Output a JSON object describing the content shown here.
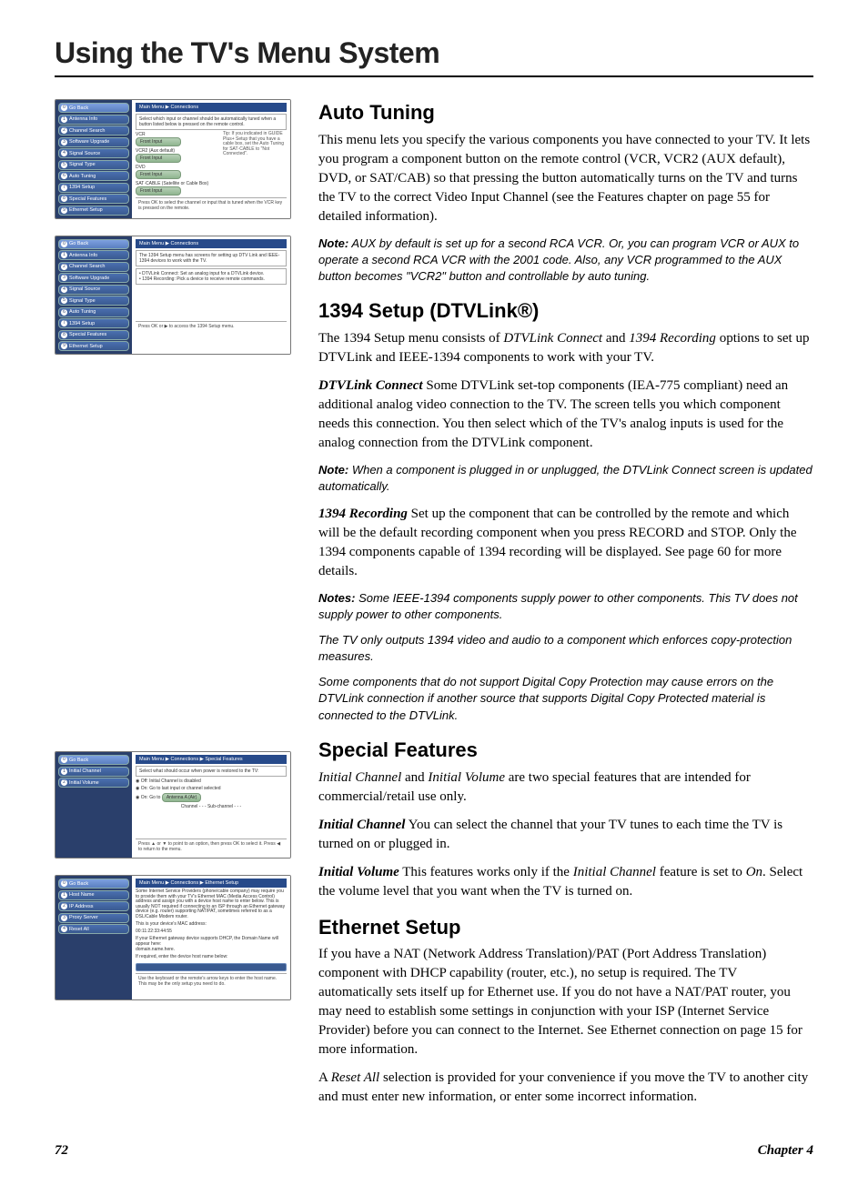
{
  "chapter_title": "Using the TV's Menu System",
  "footer": {
    "page": "72",
    "chapter": "Chapter 4"
  },
  "panel_auto": {
    "breadcrumb": "Main Menu ▶ Connections",
    "side": [
      {
        "n": "0",
        "label": "Go Back"
      },
      {
        "n": "1",
        "label": "Antenna Info"
      },
      {
        "n": "2",
        "label": "Channel Search"
      },
      {
        "n": "3",
        "label": "Software Upgrade"
      },
      {
        "n": "4",
        "label": "Signal Source"
      },
      {
        "n": "5",
        "label": "Signal Type"
      },
      {
        "n": "6",
        "label": "Auto Tuning"
      },
      {
        "n": "7",
        "label": "1394 Setup"
      },
      {
        "n": "8",
        "label": "Special Features"
      },
      {
        "n": "9",
        "label": "Ethernet Setup"
      }
    ],
    "blurb": "Select which input or channel should be automatically tuned when a button listed below is pressed on the remote control.",
    "rows": [
      {
        "label": "VCR",
        "pill": "Front Input"
      },
      {
        "label": "VCR2 (Aux default)",
        "pill": "Front Input"
      },
      {
        "label": "DVD",
        "pill": "Front Input"
      },
      {
        "label": "SAT·CABLE (Satellite or Cable Box)",
        "pill": "Front Input"
      }
    ],
    "tip": "Tip: If you indicated in GUIDE Plus+ Setup that you have a cable box, set the Auto Tuning for SAT·CABLE to \"Not Connected\".",
    "footer": "Press OK to select the channel or input that is tuned when the VCR key is pressed on the remote."
  },
  "panel_1394": {
    "breadcrumb": "Main Menu ▶ Connections",
    "side": [
      {
        "n": "0",
        "label": "Go Back"
      },
      {
        "n": "1",
        "label": "Antenna Info"
      },
      {
        "n": "2",
        "label": "Channel Search"
      },
      {
        "n": "3",
        "label": "Software Upgrade"
      },
      {
        "n": "4",
        "label": "Signal Source"
      },
      {
        "n": "5",
        "label": "Signal Type"
      },
      {
        "n": "6",
        "label": "Auto Tuning"
      },
      {
        "n": "7",
        "label": "1394 Setup"
      },
      {
        "n": "8",
        "label": "Special Features"
      },
      {
        "n": "9",
        "label": "Ethernet Setup"
      }
    ],
    "blurb": "The 1394 Setup menu has screens for setting up DTV Link and IEEE-1394 devices to work with the TV.",
    "bullets": "• DTVLink Connect: Set an analog input for a DTVLink device.\n• 1394 Recording: Pick a device to receive remote commands.",
    "footer": "Press OK or ▶ to access the 1394 Setup menu."
  },
  "panel_special": {
    "breadcrumb": "Main Menu ▶ Connections ▶ Special Features",
    "side": [
      {
        "n": "0",
        "label": "Go Back"
      },
      {
        "n": "1",
        "label": "Initial Channel"
      },
      {
        "n": "2",
        "label": "Initial Volume"
      }
    ],
    "blurb": "Select what should occur when power is restored to the TV:",
    "opts": [
      "Off: Initial Channel is disabled",
      "On: Go to last input or channel selected",
      "On: Go to"
    ],
    "chip": "Antenna A (Air)",
    "subline": "Channel    - - -    Sub-channel    - - -",
    "footer": "Press ▲ or ▼ to point to an option, then press OK to select it. Press ◀ to return to the menu."
  },
  "panel_eth": {
    "breadcrumb": "Main Menu ▶ Connections ▶ Ethernet Setup",
    "side": [
      {
        "n": "0",
        "label": "Go Back"
      },
      {
        "n": "1",
        "label": "Host Name"
      },
      {
        "n": "2",
        "label": "IP Address"
      },
      {
        "n": "3",
        "label": "Proxy Server"
      },
      {
        "n": "4",
        "label": "Reset All"
      }
    ],
    "blurb": "Some Internet Service Providers (phone/cable company) may require you to provide them with your TV's Ethernet MAC (Media Access Control) address and assign you with a device host name to enter below. This is usually NOT required if connecting to an ISP through an Ethernet gateway device (e.g. router) supporting NAT/PAT, sometimes referred to as a DSL/Cable Modem router.",
    "mac_label": "This is your device's MAC address:",
    "mac": "00:11:22:33:44:55",
    "dhcp_note": "If your Ethernet gateway device supports DHCP, the Domain Name will appear here:\ndomain.name.here.",
    "hostname_label": "If required, enter the device host name below:",
    "footer": "Use the keyboard or the remote's arrow keys to enter the host name. This may be the only setup you need to do."
  },
  "auto": {
    "h": "Auto Tuning",
    "p1": "This menu lets you specify the various components you have connected to your TV. It lets you program a component button on the remote control (VCR, VCR2 (AUX default), DVD, or SAT/CAB) so that pressing the button automatically turns on the TV and turns the TV to the correct Video Input Channel (see the Features chapter on page 55 for detailed information).",
    "note_lead": "Note:",
    "note": " AUX by default is set up for a second RCA VCR. Or, you can program VCR or AUX to operate a second RCA VCR with the 2001 code. Also, any VCR programmed to the AUX button becomes \"VCR2\" button and controllable by auto tuning."
  },
  "s1394": {
    "h": "1394 Setup (DTVLink®)",
    "p1a": "The 1394 Setup menu consists of ",
    "p1b": "DTVLink Connect",
    "p1c": " and ",
    "p1d": "1394 Recording",
    "p1e": " options to set up DTVLink and IEEE-1394 components to work with your TV.",
    "t1": "DTVLink Connect",
    "t1p": "   Some DTVLink set-top components (IEA-775 compliant) need an additional analog video connection to the TV. The screen tells you which component needs this connection. You then select which of the TV's analog inputs is used for the analog connection from the DTVLink component.",
    "n1_lead": "Note:",
    "n1": " When a component is plugged in or unplugged, the DTVLink Connect screen is updated automatically.",
    "t2": "1394 Recording",
    "t2p": "   Set up the component that can be controlled by the remote and which will be the default recording component when you press RECORD and STOP. Only the 1394 components capable of 1394 recording will be displayed. See page 60 for more details.",
    "n2_lead": "Notes:",
    "n2a": " Some IEEE-1394 components supply power to other components. This TV does not supply power to other components.",
    "n2b": "The TV only outputs 1394 video and audio to a component which enforces copy-protection measures.",
    "n2c": "Some components that do not support Digital Copy Protection may cause errors on the DTVLink connection if another source that supports Digital Copy Protected material is connected to the DTVLink."
  },
  "special": {
    "h": "Special Features",
    "p1a": "Initial Channel",
    "p1b": " and ",
    "p1c": "Initial Volume",
    "p1d": " are two special features that are intended for commercial/retail use only.",
    "t1": "Initial Channel",
    "t1p": "   You can select the channel that your TV tunes to each time the TV is turned on or plugged in.",
    "t2": "Initial Volume",
    "t2p_a": "   This features works only if the ",
    "t2p_b": "Initial Channel",
    "t2p_c": " feature is set to ",
    "t2p_d": "On",
    "t2p_e": ".  Select the volume level that you want when the TV is turned on."
  },
  "eth": {
    "h": "Ethernet Setup",
    "p1": "If you have a NAT (Network Address Translation)/PAT (Port Address Translation) component with DHCP capability (router, etc.), no setup is required. The TV automatically sets itself up for Ethernet use. If you do not have a NAT/PAT router, you may need to establish some settings in conjunction with your ISP (Internet Service Provider) before you can connect to the Internet. See Ethernet connection on page 15 for more information.",
    "p2a": "A ",
    "p2b": "Reset All",
    "p2c": " selection is provided for your convenience if you move the TV to another city and must enter new information, or enter some incorrect information."
  }
}
